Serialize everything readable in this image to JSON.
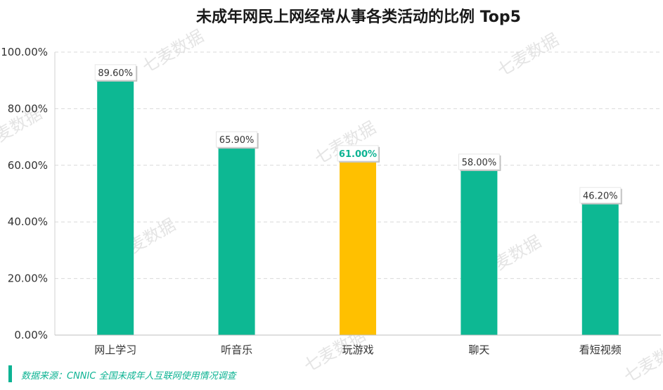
{
  "chart_data": {
    "type": "bar",
    "title": "未成年网民上网经常从事各类活动的比例 Top5",
    "categories": [
      "网上学习",
      "听音乐",
      "玩游戏",
      "聊天",
      "看短视频"
    ],
    "values": [
      89.6,
      65.9,
      61.0,
      58.0,
      46.2
    ],
    "data_labels": [
      "89.60%",
      "65.90%",
      "61.00%",
      "58.00%",
      "46.20%"
    ],
    "highlight_index": 2,
    "ylim": [
      0,
      100
    ],
    "yticks": [
      0,
      20,
      40,
      60,
      80,
      100
    ],
    "ytick_labels": [
      "0.00%",
      "20.00%",
      "40.00%",
      "60.00%",
      "80.00%",
      "100.00%"
    ],
    "grid": true,
    "colors": {
      "bar": "#0db893",
      "highlight": "#ffc000",
      "accent": "#0db393"
    }
  },
  "watermark": "七麦数据",
  "source": "数据来源：CNNIC 全国未成年人互联网使用情况调查"
}
